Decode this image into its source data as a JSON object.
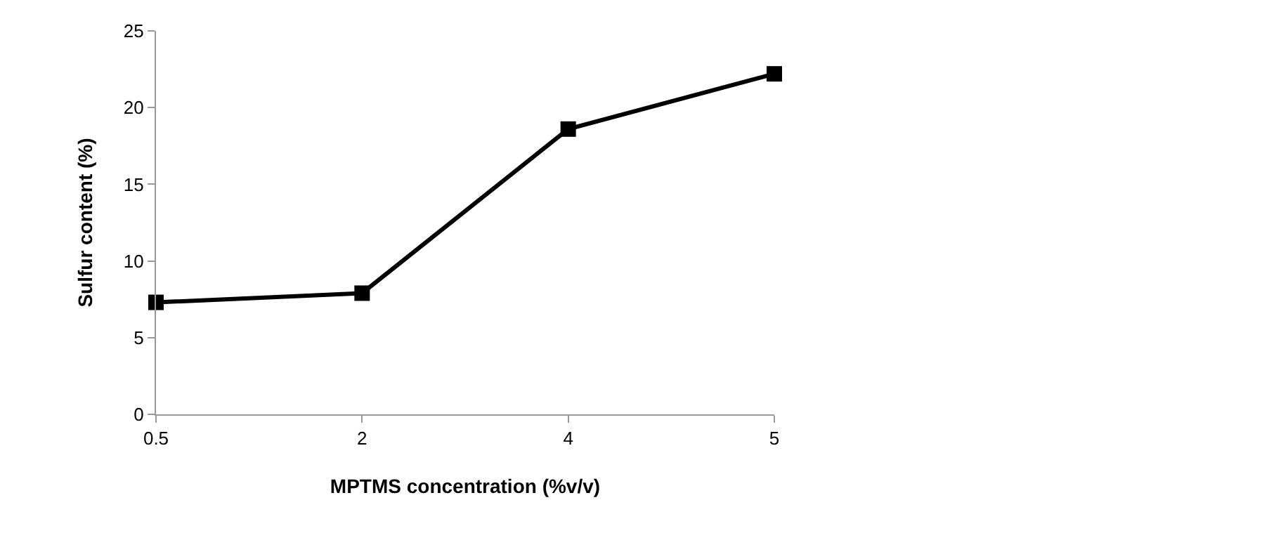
{
  "chart_data": {
    "type": "line",
    "xlabel": "MPTMS concentration (%v/v)",
    "ylabel": "Sulfur content (%)",
    "categories": [
      "0.5",
      "2",
      "4",
      "5"
    ],
    "series": [
      {
        "color": "#000000",
        "values": [
          7.3,
          7.9,
          18.6,
          22.2
        ]
      }
    ],
    "ylim": [
      0,
      25
    ],
    "yticks": [
      0,
      5,
      10,
      15,
      20,
      25
    ],
    "grid": false,
    "legend": false,
    "marker": "square",
    "line_style": "solid"
  }
}
